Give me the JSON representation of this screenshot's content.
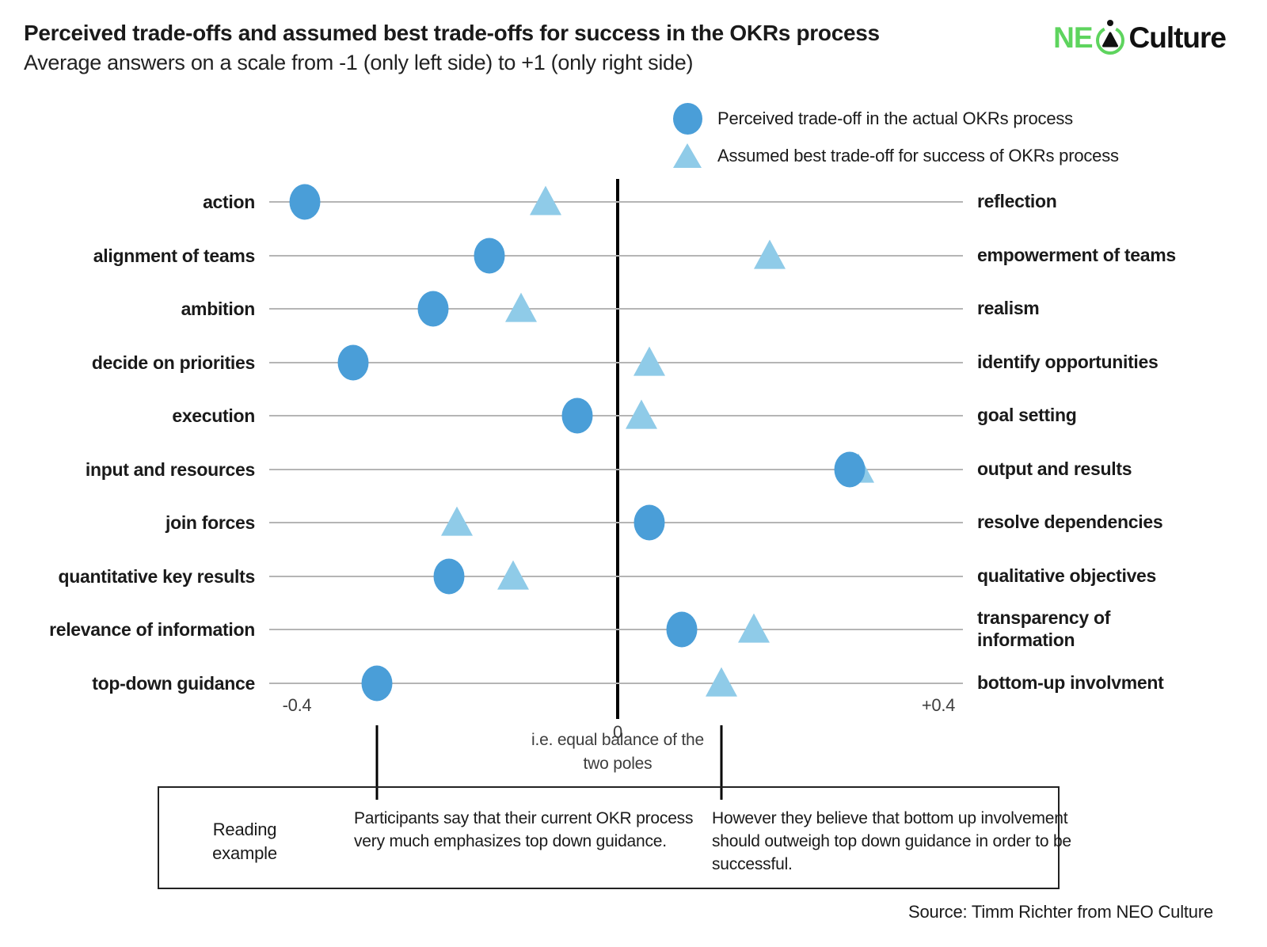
{
  "header": {
    "title": "Perceived trade-offs and assumed best trade-offs for success in the OKRs process",
    "subtitle": "Average answers on a scale from -1 (only left side) to +1 (only right side)"
  },
  "logo": {
    "part1": "NE",
    "part2": "Culture"
  },
  "legend": {
    "perceived": "Perceived trade-off in the actual OKRs process",
    "assumed": "Assumed best trade-off for success of OKRs process"
  },
  "chart_data": {
    "type": "scatter",
    "title": "Perceived trade-offs and assumed best trade-offs for success in the OKRs process",
    "subtitle": "Average answers on a scale from -1 (only left side) to +1 (only right side)",
    "xlim": [
      -0.45,
      0.45
    ],
    "grid": "horizontal-row-lines",
    "legend_position": "top-right",
    "ticks": [
      {
        "value": -0.4,
        "label": "-0.4"
      },
      {
        "value": 0,
        "label": "0"
      },
      {
        "value": 0.4,
        "label": "+0.4"
      }
    ],
    "series_names": [
      "Perceived trade-off in the actual OKRs process",
      "Assumed best trade-off for success of OKRs process"
    ],
    "rows": [
      {
        "left": "action",
        "right": "reflection",
        "perceived": -0.39,
        "assumed": -0.09
      },
      {
        "left": "alignment of teams",
        "right": "empowerment of teams",
        "perceived": -0.16,
        "assumed": 0.19
      },
      {
        "left": "ambition",
        "right": "realism",
        "perceived": -0.23,
        "assumed": -0.12
      },
      {
        "left": "decide on priorities",
        "right": "identify opportunities",
        "perceived": -0.33,
        "assumed": 0.04
      },
      {
        "left": "execution",
        "right": "goal setting",
        "perceived": -0.05,
        "assumed": 0.03
      },
      {
        "left": "input and resources",
        "right": "output and results",
        "perceived": 0.29,
        "assumed": 0.3
      },
      {
        "left": "join forces",
        "right": "resolve dependencies",
        "perceived": 0.04,
        "assumed": -0.2
      },
      {
        "left": "quantitative key results",
        "right": "qualitative objectives",
        "perceived": -0.21,
        "assumed": -0.13
      },
      {
        "left": "relevance of information",
        "right": "transparency of information",
        "perceived": 0.08,
        "assumed": 0.17
      },
      {
        "left": "top-down guidance",
        "right": "bottom-up involvment",
        "perceived": -0.3,
        "assumed": 0.13
      }
    ]
  },
  "annotations": {
    "zero_note": "i.e. equal balance of the two poles",
    "reading_example": "Reading example",
    "left_note": "Participants say that their current OKR process very much emphasizes top down guidance.",
    "right_note": "However they believe that bottom up involvement should outweigh top down guidance in order to be successful."
  },
  "source": "Source: Timm Richter from NEO Culture",
  "colors": {
    "perceived": "#4a9ed8",
    "assumed": "#8fcbe8",
    "logo_green": "#5ed45e",
    "gridline": "#b5b5b5"
  }
}
